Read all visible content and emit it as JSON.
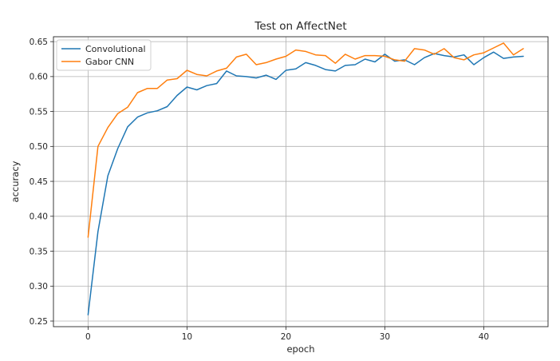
{
  "chart_data": {
    "type": "line",
    "title": "Test on AffectNet",
    "xlabel": "epoch",
    "ylabel": "accuracy",
    "xlim": [
      -3.5,
      46.5
    ],
    "ylim": [
      0.242,
      0.657
    ],
    "xticks": [
      0,
      10,
      20,
      30,
      40
    ],
    "yticks": [
      0.25,
      0.3,
      0.35,
      0.4,
      0.45,
      0.5,
      0.55,
      0.6,
      0.65
    ],
    "ytick_labels": [
      "0.25",
      "0.30",
      "0.35",
      "0.40",
      "0.45",
      "0.50",
      "0.55",
      "0.60",
      "0.65"
    ],
    "grid": true,
    "legend_position": "upper-left",
    "series": [
      {
        "name": "Convolutional",
        "color": "#1f77b4",
        "x": [
          0,
          1,
          2,
          3,
          4,
          5,
          6,
          7,
          8,
          9,
          10,
          11,
          12,
          13,
          14,
          15,
          16,
          17,
          18,
          19,
          20,
          21,
          22,
          23,
          24,
          25,
          26,
          27,
          28,
          29,
          30,
          31,
          32,
          33,
          34,
          35,
          36,
          37,
          38,
          39,
          40,
          41,
          42,
          43,
          44
        ],
        "values": [
          0.259,
          0.378,
          0.458,
          0.497,
          0.528,
          0.542,
          0.548,
          0.551,
          0.557,
          0.573,
          0.585,
          0.581,
          0.587,
          0.59,
          0.608,
          0.601,
          0.6,
          0.598,
          0.602,
          0.596,
          0.609,
          0.611,
          0.62,
          0.616,
          0.61,
          0.608,
          0.616,
          0.617,
          0.625,
          0.621,
          0.632,
          0.622,
          0.624,
          0.617,
          0.627,
          0.633,
          0.63,
          0.628,
          0.631,
          0.617,
          0.627,
          0.635,
          0.626,
          0.628,
          0.629
        ]
      },
      {
        "name": "Gabor CNN",
        "color": "#ff7f0e",
        "x": [
          0,
          1,
          2,
          3,
          4,
          5,
          6,
          7,
          8,
          9,
          10,
          11,
          12,
          13,
          14,
          15,
          16,
          17,
          18,
          19,
          20,
          21,
          22,
          23,
          24,
          25,
          26,
          27,
          28,
          29,
          30,
          31,
          32,
          33,
          34,
          35,
          36,
          37,
          38,
          39,
          40,
          41,
          42,
          43,
          44
        ],
        "values": [
          0.37,
          0.5,
          0.527,
          0.547,
          0.556,
          0.577,
          0.583,
          0.583,
          0.595,
          0.597,
          0.609,
          0.603,
          0.601,
          0.608,
          0.612,
          0.628,
          0.632,
          0.617,
          0.62,
          0.625,
          0.629,
          0.638,
          0.636,
          0.631,
          0.63,
          0.619,
          0.632,
          0.625,
          0.63,
          0.63,
          0.629,
          0.624,
          0.622,
          0.64,
          0.638,
          0.632,
          0.64,
          0.627,
          0.624,
          0.631,
          0.634,
          0.641,
          0.648,
          0.631,
          0.64
        ]
      }
    ]
  }
}
